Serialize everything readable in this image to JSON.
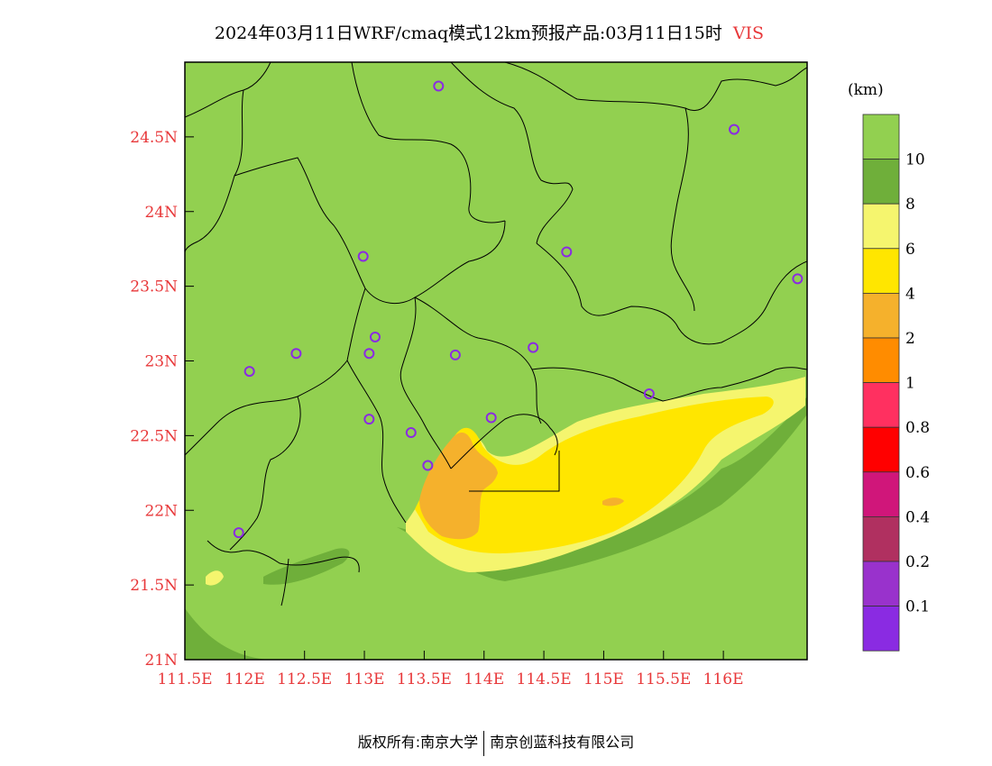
{
  "title": {
    "main": "2024年03月11日WRF/cmaq模式12km预报产品:03月11日15时",
    "variable": "VIS"
  },
  "footer": {
    "left": "版权所有:南京大学",
    "right": "南京创蓝科技有限公司"
  },
  "colors": {
    "land_background": "#92d050",
    "axis_label": "#e8383a",
    "station_marker": "#8a2be2",
    "boundary_line": "#000000"
  },
  "axes": {
    "lon_ticks": [
      "111.5E",
      "112E",
      "112.5E",
      "113E",
      "113.5E",
      "114E",
      "114.5E",
      "115E",
      "115.5E",
      "116E"
    ],
    "lat_ticks": [
      "24.5N",
      "24N",
      "23.5N",
      "23N",
      "22.5N",
      "22N",
      "21.5N",
      "21N"
    ],
    "lon_values": [
      111.5,
      112,
      112.5,
      113,
      113.5,
      114,
      114.5,
      115,
      115.5,
      116
    ],
    "lat_values": [
      24.5,
      24,
      23.5,
      23,
      22.5,
      22,
      21.5,
      21
    ],
    "lon_range": [
      111.5,
      116.7
    ],
    "lat_range": [
      21.0,
      25.0
    ]
  },
  "legend": {
    "unit": "(km)",
    "bins": [
      {
        "color": "#92d050",
        "label": "10"
      },
      {
        "color": "#6faf3a",
        "label": "8"
      },
      {
        "color": "#f5f56e",
        "label": "6"
      },
      {
        "color": "#ffe600",
        "label": "4"
      },
      {
        "color": "#f5b12c",
        "label": "2"
      },
      {
        "color": "#ff8c00",
        "label": "1"
      },
      {
        "color": "#ff3060",
        "label": "0.8"
      },
      {
        "color": "#ff0000",
        "label": "0.6"
      },
      {
        "color": "#d0167a",
        "label": "0.4"
      },
      {
        "color": "#b03060",
        "label": "0.2"
      },
      {
        "color": "#9932cc",
        "label": "0.1"
      },
      {
        "color": "#8a2be2",
        "label": ""
      }
    ]
  },
  "stations": [
    {
      "lon": 113.62,
      "lat": 24.84
    },
    {
      "lon": 116.09,
      "lat": 24.55
    },
    {
      "lon": 112.99,
      "lat": 23.7
    },
    {
      "lon": 114.69,
      "lat": 23.73
    },
    {
      "lon": 116.62,
      "lat": 23.55
    },
    {
      "lon": 113.09,
      "lat": 23.16
    },
    {
      "lon": 113.04,
      "lat": 23.05
    },
    {
      "lon": 113.76,
      "lat": 23.04
    },
    {
      "lon": 114.41,
      "lat": 23.09
    },
    {
      "lon": 112.43,
      "lat": 23.05
    },
    {
      "lon": 112.04,
      "lat": 22.93
    },
    {
      "lon": 115.38,
      "lat": 22.78
    },
    {
      "lon": 113.04,
      "lat": 22.61
    },
    {
      "lon": 113.39,
      "lat": 22.52
    },
    {
      "lon": 114.06,
      "lat": 22.62
    },
    {
      "lon": 113.53,
      "lat": 22.3
    },
    {
      "lon": 111.95,
      "lat": 21.85
    }
  ]
}
